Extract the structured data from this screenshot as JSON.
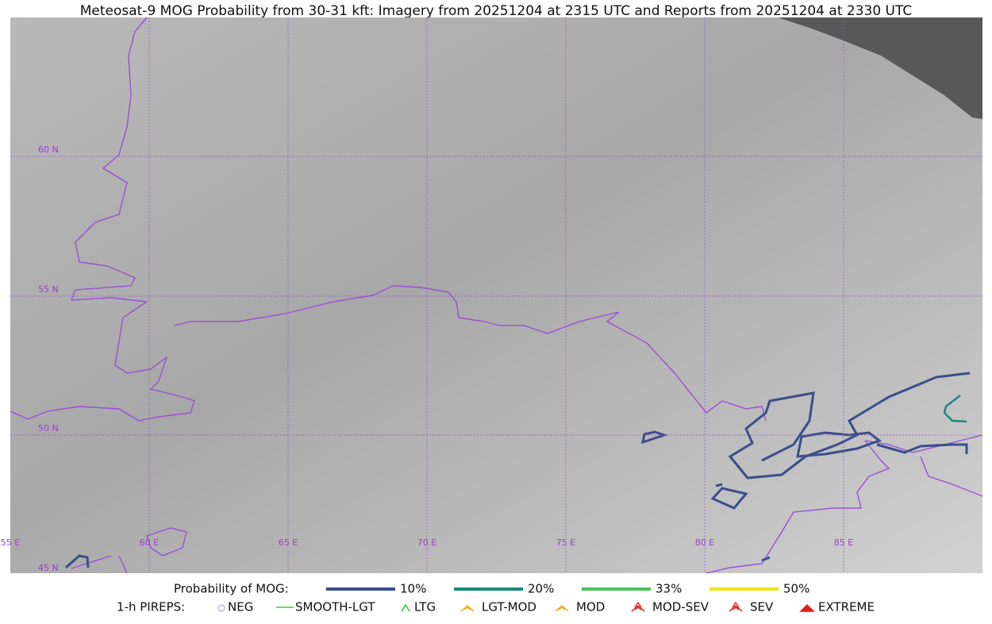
{
  "title": "Meteosat-9 MOG Probability from 30-31 kft: Imagery from 20251204 at 2315 UTC and Reports from 20251204 at 2330 UTC",
  "map": {
    "lat_labels": [
      "60 N",
      "55 N",
      "50 N",
      "45 N"
    ],
    "lon_labels": [
      "55 E",
      "60 E",
      "65 E",
      "70 E",
      "75 E",
      "80 E",
      "85 E"
    ]
  },
  "legend": {
    "mog_label": "Probability of MOG:",
    "mog": [
      {
        "label": "10%",
        "color": "#3a4f8a"
      },
      {
        "label": "20%",
        "color": "#1a8a80"
      },
      {
        "label": "33%",
        "color": "#4cc35a"
      },
      {
        "label": "50%",
        "color": "#f2e21a"
      }
    ],
    "pirep_label": "1-h PIREPS:",
    "pireps": [
      "NEG",
      "SMOOTH-LGT",
      "LTG",
      "LGT-MOD",
      "MOD",
      "MOD-SEV",
      "SEV",
      "EXTREME"
    ]
  }
}
